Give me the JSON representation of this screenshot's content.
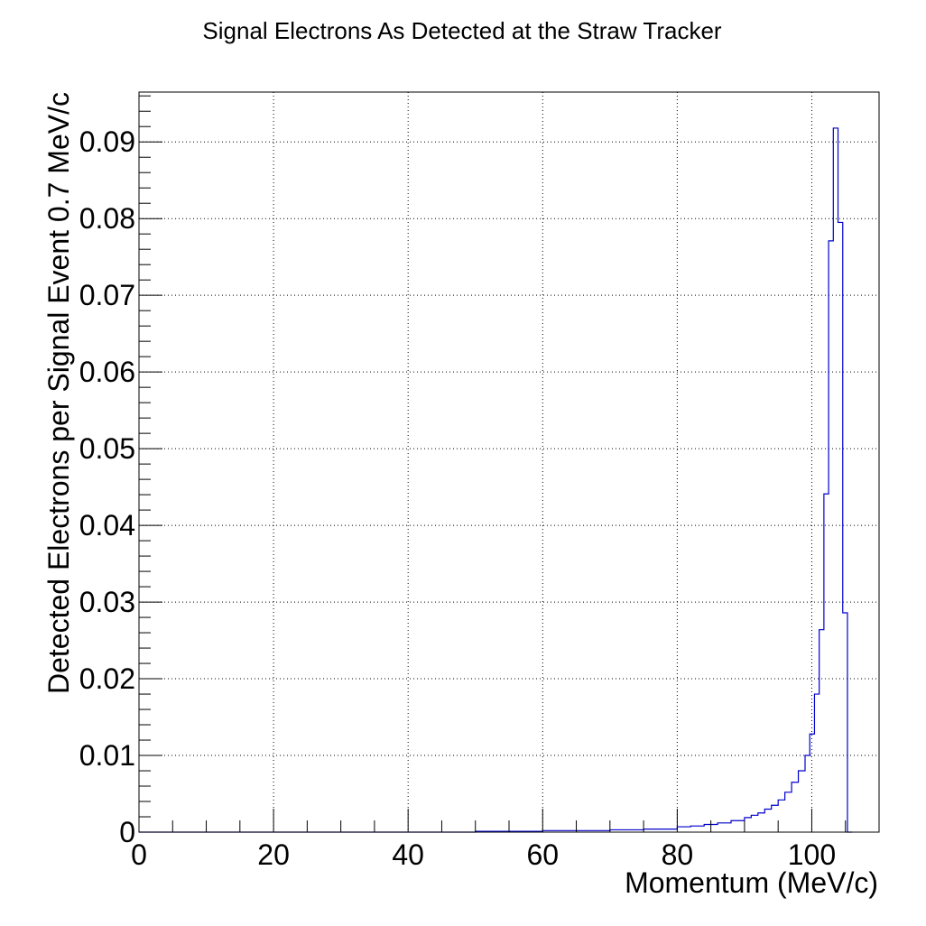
{
  "chart_data": {
    "type": "histogram",
    "title": "Signal Electrons As Detected at the Straw Tracker",
    "xlabel": "Momentum (MeV/c)",
    "ylabel": "Detected Electrons per Signal Event 0.7 MeV/c",
    "xlim": [
      0,
      110
    ],
    "ylim": [
      0,
      0.0965
    ],
    "x_ticks": [
      0,
      20,
      40,
      60,
      80,
      100
    ],
    "x_tick_labels": [
      "0",
      "20",
      "40",
      "60",
      "80",
      "100"
    ],
    "y_ticks": [
      0,
      0.01,
      0.02,
      0.03,
      0.04,
      0.05,
      0.06,
      0.07,
      0.08,
      0.09
    ],
    "y_tick_labels": [
      "0",
      "0.01",
      "0.02",
      "0.03",
      "0.04",
      "0.05",
      "0.06",
      "0.07",
      "0.08",
      "0.09"
    ],
    "grid": true,
    "bin_width": 0.7,
    "line_color": "#0000cc",
    "series": [
      {
        "bins": [
          {
            "x": 0,
            "y": 0
          },
          {
            "x": 50,
            "y": 0.0001
          },
          {
            "x": 55,
            "y": 0.0001
          },
          {
            "x": 60,
            "y": 0.0002
          },
          {
            "x": 65,
            "y": 0.0002
          },
          {
            "x": 70,
            "y": 0.0003
          },
          {
            "x": 75,
            "y": 0.0004
          },
          {
            "x": 80,
            "y": 0.0007
          },
          {
            "x": 82,
            "y": 0.0008
          },
          {
            "x": 84,
            "y": 0.001
          },
          {
            "x": 86,
            "y": 0.0012
          },
          {
            "x": 88,
            "y": 0.0015
          },
          {
            "x": 90,
            "y": 0.0019
          },
          {
            "x": 91,
            "y": 0.0022
          },
          {
            "x": 92,
            "y": 0.0025
          },
          {
            "x": 93,
            "y": 0.003
          },
          {
            "x": 94,
            "y": 0.0035
          },
          {
            "x": 95,
            "y": 0.0042
          },
          {
            "x": 96,
            "y": 0.0052
          },
          {
            "x": 97,
            "y": 0.0065
          },
          {
            "x": 98,
            "y": 0.008
          },
          {
            "x": 99,
            "y": 0.01
          },
          {
            "x": 99.7,
            "y": 0.0128
          },
          {
            "x": 100.4,
            "y": 0.018
          },
          {
            "x": 101.1,
            "y": 0.0264
          },
          {
            "x": 101.8,
            "y": 0.0441
          },
          {
            "x": 102.5,
            "y": 0.0771
          },
          {
            "x": 103.2,
            "y": 0.0918
          },
          {
            "x": 103.9,
            "y": 0.0795
          },
          {
            "x": 104.6,
            "y": 0.0286
          },
          {
            "x": 105.3,
            "y": 0
          }
        ]
      }
    ]
  }
}
